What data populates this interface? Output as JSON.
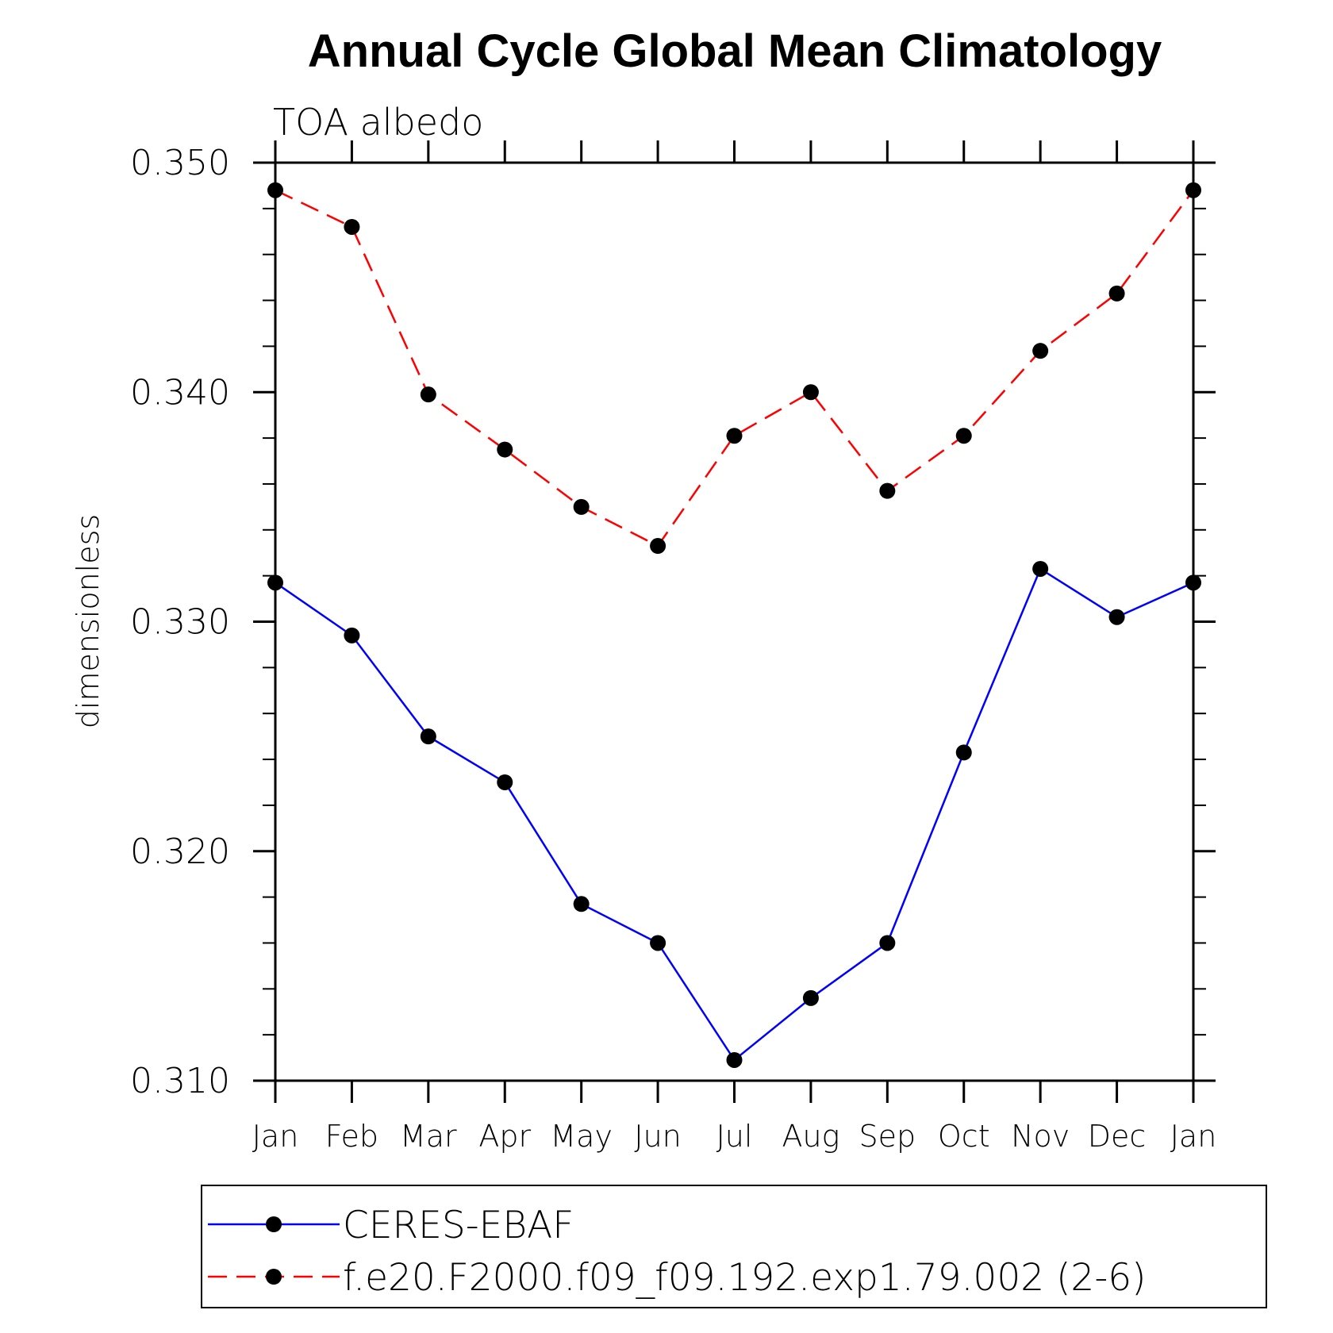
{
  "chart_data": {
    "type": "line",
    "title": "Annual Cycle Global Mean Climatology",
    "subtitle": "TOA albedo",
    "ylabel": "dimensionless",
    "xlabel": "",
    "categories": [
      "Jan",
      "Feb",
      "Mar",
      "Apr",
      "May",
      "Jun",
      "Jul",
      "Aug",
      "Sep",
      "Oct",
      "Nov",
      "Dec",
      "Jan"
    ],
    "ylim": [
      0.31,
      0.35
    ],
    "yticks": [
      "0.310",
      "0.320",
      "0.330",
      "0.340",
      "0.350"
    ],
    "grid": false,
    "legend_position": "bottom",
    "series": [
      {
        "name": "CERES-EBAF",
        "color": "#0000ff",
        "style": "solid",
        "marker": "circle",
        "values": [
          0.3317,
          0.3294,
          0.325,
          0.323,
          0.3177,
          0.316,
          0.3109,
          0.3136,
          0.316,
          0.3243,
          0.3323,
          0.3302,
          0.3317
        ]
      },
      {
        "name": "f.e20.F2000.f09_f09.192.exp1.79.002 (2-6)",
        "color": "#ff0000",
        "style": "dashed",
        "marker": "circle",
        "values": [
          0.3488,
          0.3472,
          0.3399,
          0.3375,
          0.335,
          0.3333,
          0.3381,
          0.34,
          0.3357,
          0.3381,
          0.3418,
          0.3443,
          0.3488
        ]
      }
    ]
  }
}
